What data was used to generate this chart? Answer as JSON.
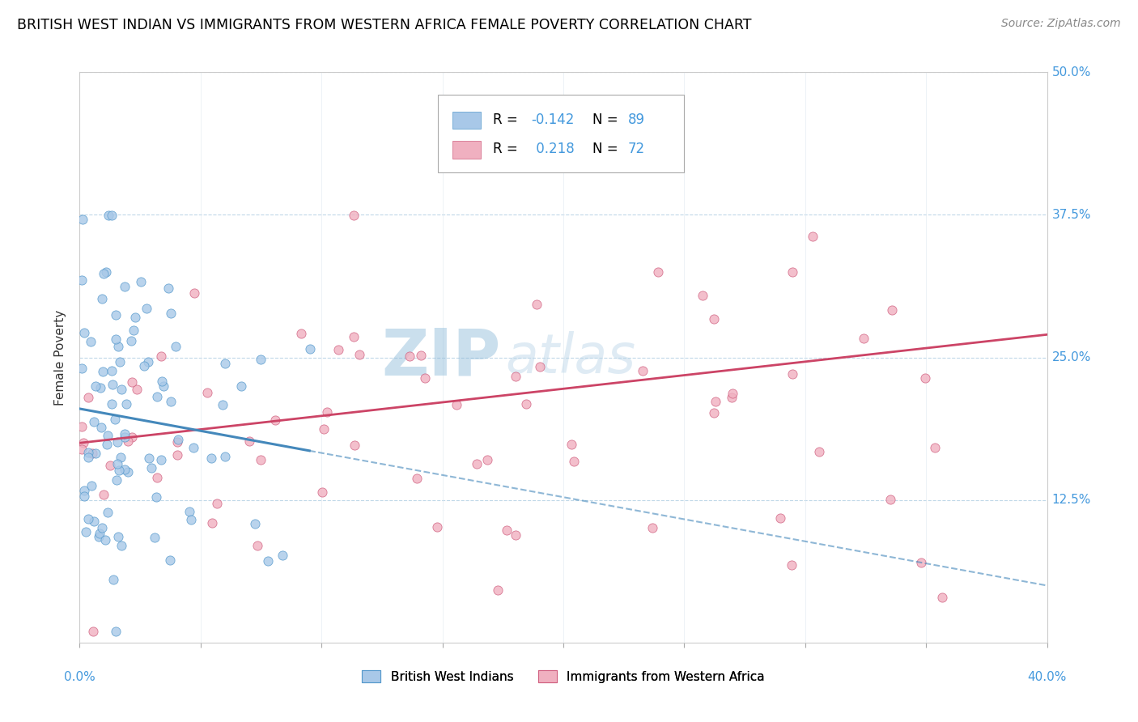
{
  "title": "BRITISH WEST INDIAN VS IMMIGRANTS FROM WESTERN AFRICA FEMALE POVERTY CORRELATION CHART",
  "source": "Source: ZipAtlas.com",
  "ylabel": "Female Poverty",
  "watermark_zip": "ZIP",
  "watermark_atlas": "atlas",
  "xlim": [
    0.0,
    0.4
  ],
  "ylim": [
    0.0,
    0.5
  ],
  "ytick_labels": [
    "12.5%",
    "25.0%",
    "37.5%",
    "50.0%"
  ],
  "ytick_values": [
    0.125,
    0.25,
    0.375,
    0.5
  ],
  "group1_color": "#a8c8e8",
  "group1_edge": "#5599cc",
  "group2_color": "#f0b0c0",
  "group2_edge": "#d06080",
  "trend1_color": "#4488bb",
  "trend2_color": "#cc4466",
  "R1": -0.142,
  "N1": 89,
  "R2": 0.218,
  "N2": 72,
  "legend_label1": "British West Indians",
  "legend_label2": "Immigrants from Western Africa",
  "right_label_color": "#4499dd",
  "background_color": "#ffffff",
  "grid_color": "#c0d8e8",
  "title_fontsize": 12.5,
  "source_fontsize": 10,
  "watermark_fontsize_zip": 58,
  "watermark_fontsize_atlas": 48,
  "watermark_color": "#c8dce8",
  "seed": 7
}
